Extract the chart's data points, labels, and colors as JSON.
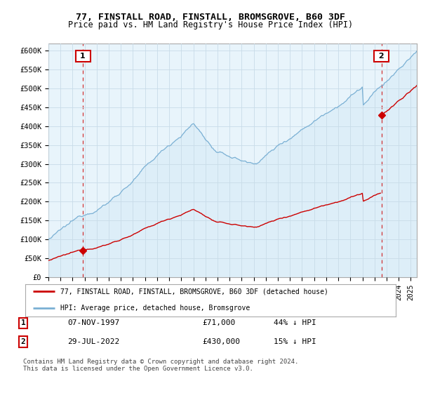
{
  "title": "77, FINSTALL ROAD, FINSTALL, BROMSGROVE, B60 3DF",
  "subtitle": "Price paid vs. HM Land Registry's House Price Index (HPI)",
  "ylabel_ticks": [
    "£0",
    "£50K",
    "£100K",
    "£150K",
    "£200K",
    "£250K",
    "£300K",
    "£350K",
    "£400K",
    "£450K",
    "£500K",
    "£550K",
    "£600K"
  ],
  "ytick_values": [
    0,
    50000,
    100000,
    150000,
    200000,
    250000,
    300000,
    350000,
    400000,
    450000,
    500000,
    550000,
    600000
  ],
  "xlim_start": 1995.0,
  "xlim_end": 2025.5,
  "ylim_min": 0,
  "ylim_max": 620000,
  "sale1_date": 1997.85,
  "sale1_price": 71000,
  "sale2_date": 2022.57,
  "sale2_price": 430000,
  "hpi_color": "#7ab0d4",
  "hpi_fill_color": "#ddeef8",
  "sale_color": "#cc0000",
  "legend_label1": "77, FINSTALL ROAD, FINSTALL, BROMSGROVE, B60 3DF (detached house)",
  "legend_label2": "HPI: Average price, detached house, Bromsgrove",
  "table_row1": [
    "1",
    "07-NOV-1997",
    "£71,000",
    "44% ↓ HPI"
  ],
  "table_row2": [
    "2",
    "29-JUL-2022",
    "£430,000",
    "15% ↓ HPI"
  ],
  "footnote": "Contains HM Land Registry data © Crown copyright and database right 2024.\nThis data is licensed under the Open Government Licence v3.0.",
  "background_color": "#ffffff",
  "plot_bg_color": "#e8f4fb",
  "grid_color": "#c8dce8"
}
